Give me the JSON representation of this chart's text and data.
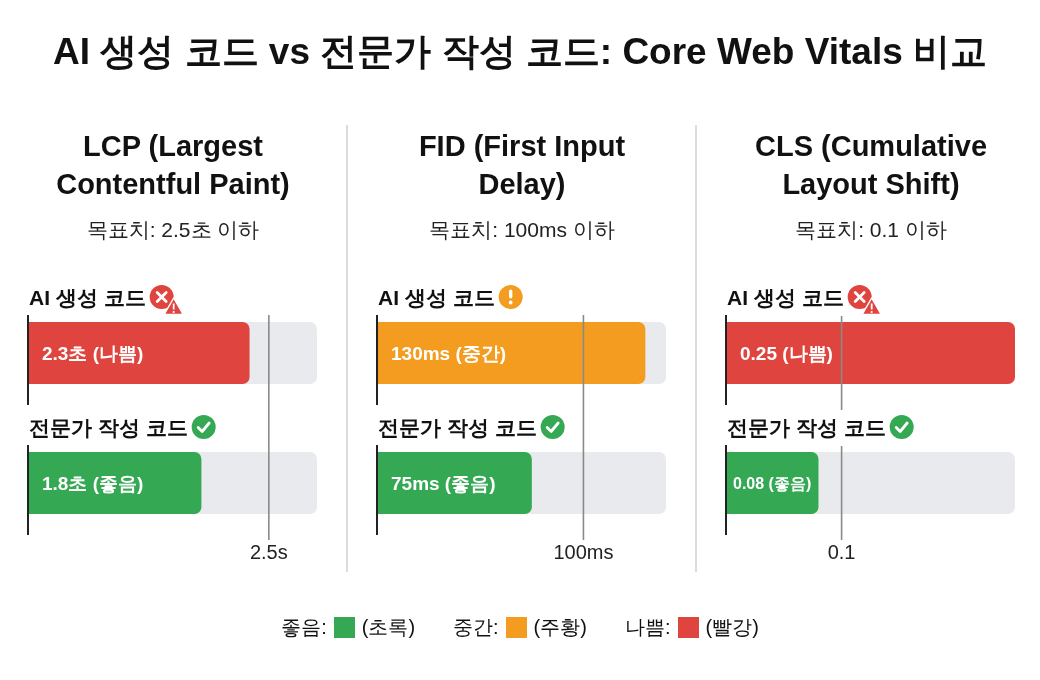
{
  "chart_data": [
    {
      "type": "other",
      "title": "AI 생성 코드 vs 전문가 작성 코드: Core Web Vitals 비교"
    },
    {
      "type": "bar",
      "title": "LCP (Largest Contentful Paint)",
      "subtitle": "목표치: 2.5초 이하",
      "orientation": "horizontal",
      "categories": [
        "AI 생성 코드",
        "전문가 작성 코드"
      ],
      "values": [
        2.3,
        1.8
      ],
      "colors": [
        "#e0443e",
        "#34a853"
      ],
      "value_labels": [
        "2.3초 (나쁨)",
        "1.8초 (좋음)"
      ],
      "xlim": [
        0,
        3
      ],
      "ref_lines": [
        {
          "axis": "x",
          "value": 2.5,
          "label": "2.5s"
        }
      ],
      "tick_labels": "y"
    },
    {
      "type": "bar",
      "title": "FID (First Input Delay)",
      "subtitle": "목표치: 100ms 이하",
      "orientation": "horizontal",
      "categories": [
        "AI 생성 코드",
        "전문가 작성 코드"
      ],
      "values": [
        130,
        75
      ],
      "colors": [
        "#f39c1f",
        "#34a853"
      ],
      "value_labels": [
        "130ms (중간)",
        "75ms (좋음)"
      ],
      "xlim": [
        0,
        140
      ],
      "ref_lines": [
        {
          "axis": "x",
          "value": 100,
          "label": "100ms"
        }
      ],
      "tick_labels": "y"
    },
    {
      "type": "bar",
      "title": "CLS (Cumulative Layout Shift)",
      "subtitle": "목표치: 0.1 이하",
      "orientation": "horizontal",
      "categories": [
        "AI 생성 코드",
        "전문가 작성 코드"
      ],
      "values": [
        0.25,
        0.08
      ],
      "colors": [
        "#e0443e",
        "#34a853"
      ],
      "value_labels": [
        "0.25 (나쁨)",
        "0.08 (좋음)"
      ],
      "xlim": [
        0,
        0.25
      ],
      "ref_lines": [
        {
          "axis": "x",
          "value": 0.1,
          "label": "0.1"
        }
      ],
      "tick_labels": "y"
    },
    {
      "type": "other",
      "annotations": [
        "좋음:",
        "(초록)",
        "중간:",
        "(주황)",
        "나쁨:",
        "(빨강)"
      ],
      "colors": [
        "#34a853",
        "#f39c1f",
        "#e0443e"
      ]
    }
  ]
}
